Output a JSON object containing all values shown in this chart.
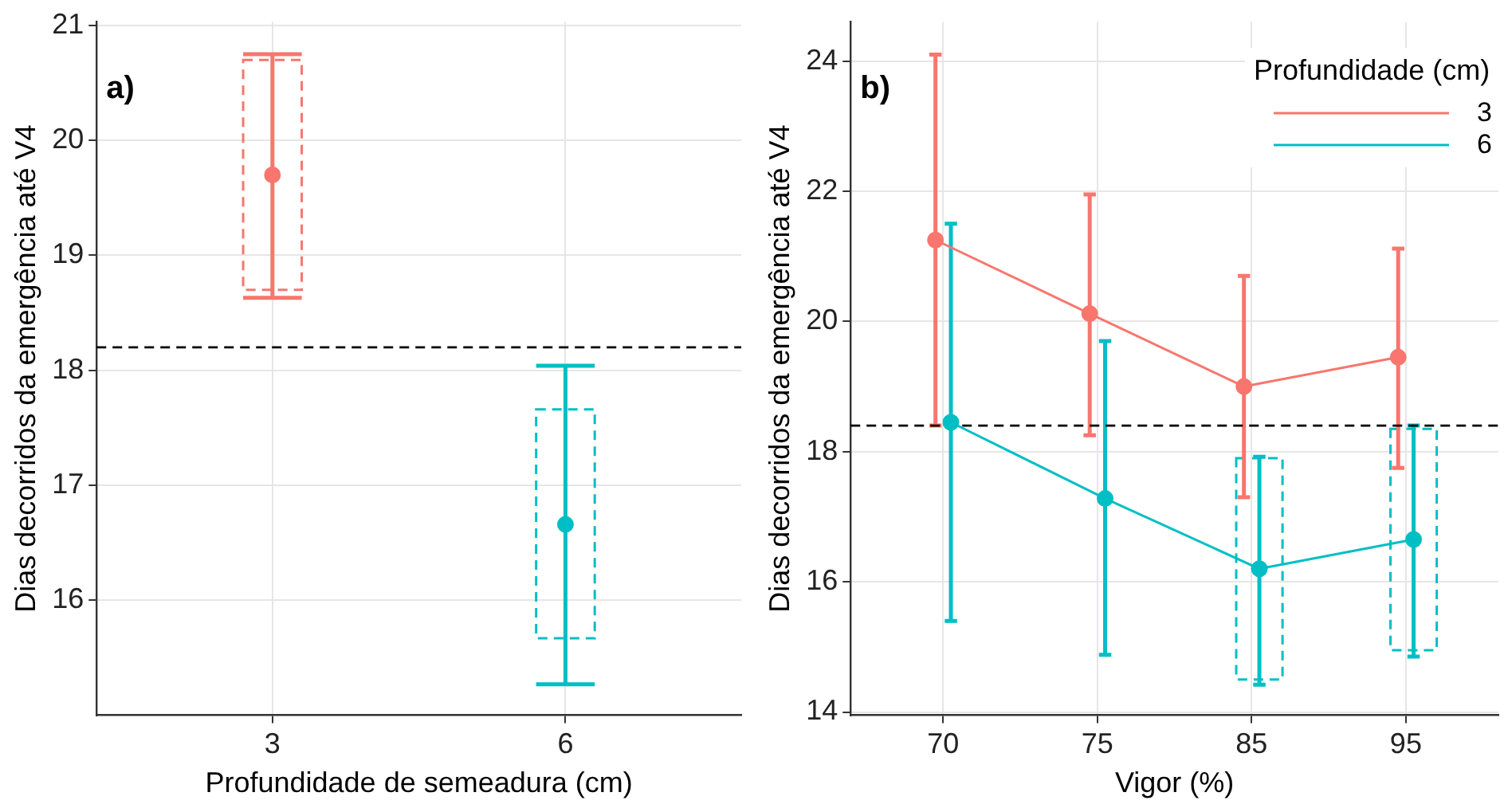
{
  "chart_data": [
    {
      "type": "scatter",
      "xlabel": "Profundidade de semeadura (cm)",
      "ylabel": "Dias decorridos da emergência até V4",
      "annotations": [
        "a)"
      ],
      "categories": [
        "3",
        "6"
      ],
      "ylim": [
        15.0,
        21.03
      ],
      "yticks": [
        16,
        17,
        18,
        19,
        20,
        21
      ],
      "grid": true,
      "marker": "circle",
      "legend": false,
      "series": [
        {
          "colors": [
            "#f8766d",
            "#00bfc4"
          ],
          "values": [
            19.7,
            16.66
          ],
          "errors": [
            [
              18.63,
              20.75
            ],
            [
              15.27,
              18.04
            ]
          ]
        },
        {
          "type": "bar",
          "colors": [
            "#f8766d",
            "#00bfc4"
          ],
          "base": [
            18.7,
            15.67
          ],
          "values": [
            2.0,
            1.99
          ],
          "line_style": "dashed"
        }
      ],
      "ref_lines": [
        {
          "axis": "y",
          "value": 18.2,
          "color": "#000000",
          "line_style": "dashed"
        }
      ]
    },
    {
      "type": "line",
      "xlabel": "Vigor (%)",
      "ylabel": "Dias decorridos da emergência até V4",
      "annotations": [
        "b)"
      ],
      "categories": [
        "70",
        "75",
        "85",
        "95"
      ],
      "ylim": [
        13.95,
        24.6
      ],
      "yticks": [
        14,
        16,
        18,
        20,
        22,
        24
      ],
      "grid": true,
      "marker": "circle",
      "legend": "top right",
      "legend_title": "Profundidade (cm)",
      "series": [
        {
          "name": "3",
          "color": "#f8766d",
          "values": [
            21.25,
            20.12,
            19.0,
            19.45
          ],
          "errors": [
            [
              18.4,
              24.1
            ],
            [
              18.25,
              21.95
            ],
            [
              17.3,
              20.7
            ],
            [
              17.75,
              21.12
            ]
          ]
        },
        {
          "name": "6",
          "color": "#00bfc4",
          "values": [
            18.45,
            17.28,
            16.2,
            16.65
          ],
          "errors": [
            [
              15.4,
              21.5
            ],
            [
              14.88,
              19.7
            ],
            [
              14.42,
              17.92
            ],
            [
              14.85,
              18.4
            ]
          ]
        },
        {
          "type": "bar",
          "color": "#00bfc4",
          "base": [
            null,
            null,
            14.5,
            14.95
          ],
          "values": [
            null,
            null,
            3.4,
            3.4
          ],
          "line_style": "dashed"
        }
      ],
      "ref_lines": [
        {
          "axis": "y",
          "value": 18.4,
          "color": "#000000",
          "line_style": "dashed"
        }
      ]
    }
  ]
}
